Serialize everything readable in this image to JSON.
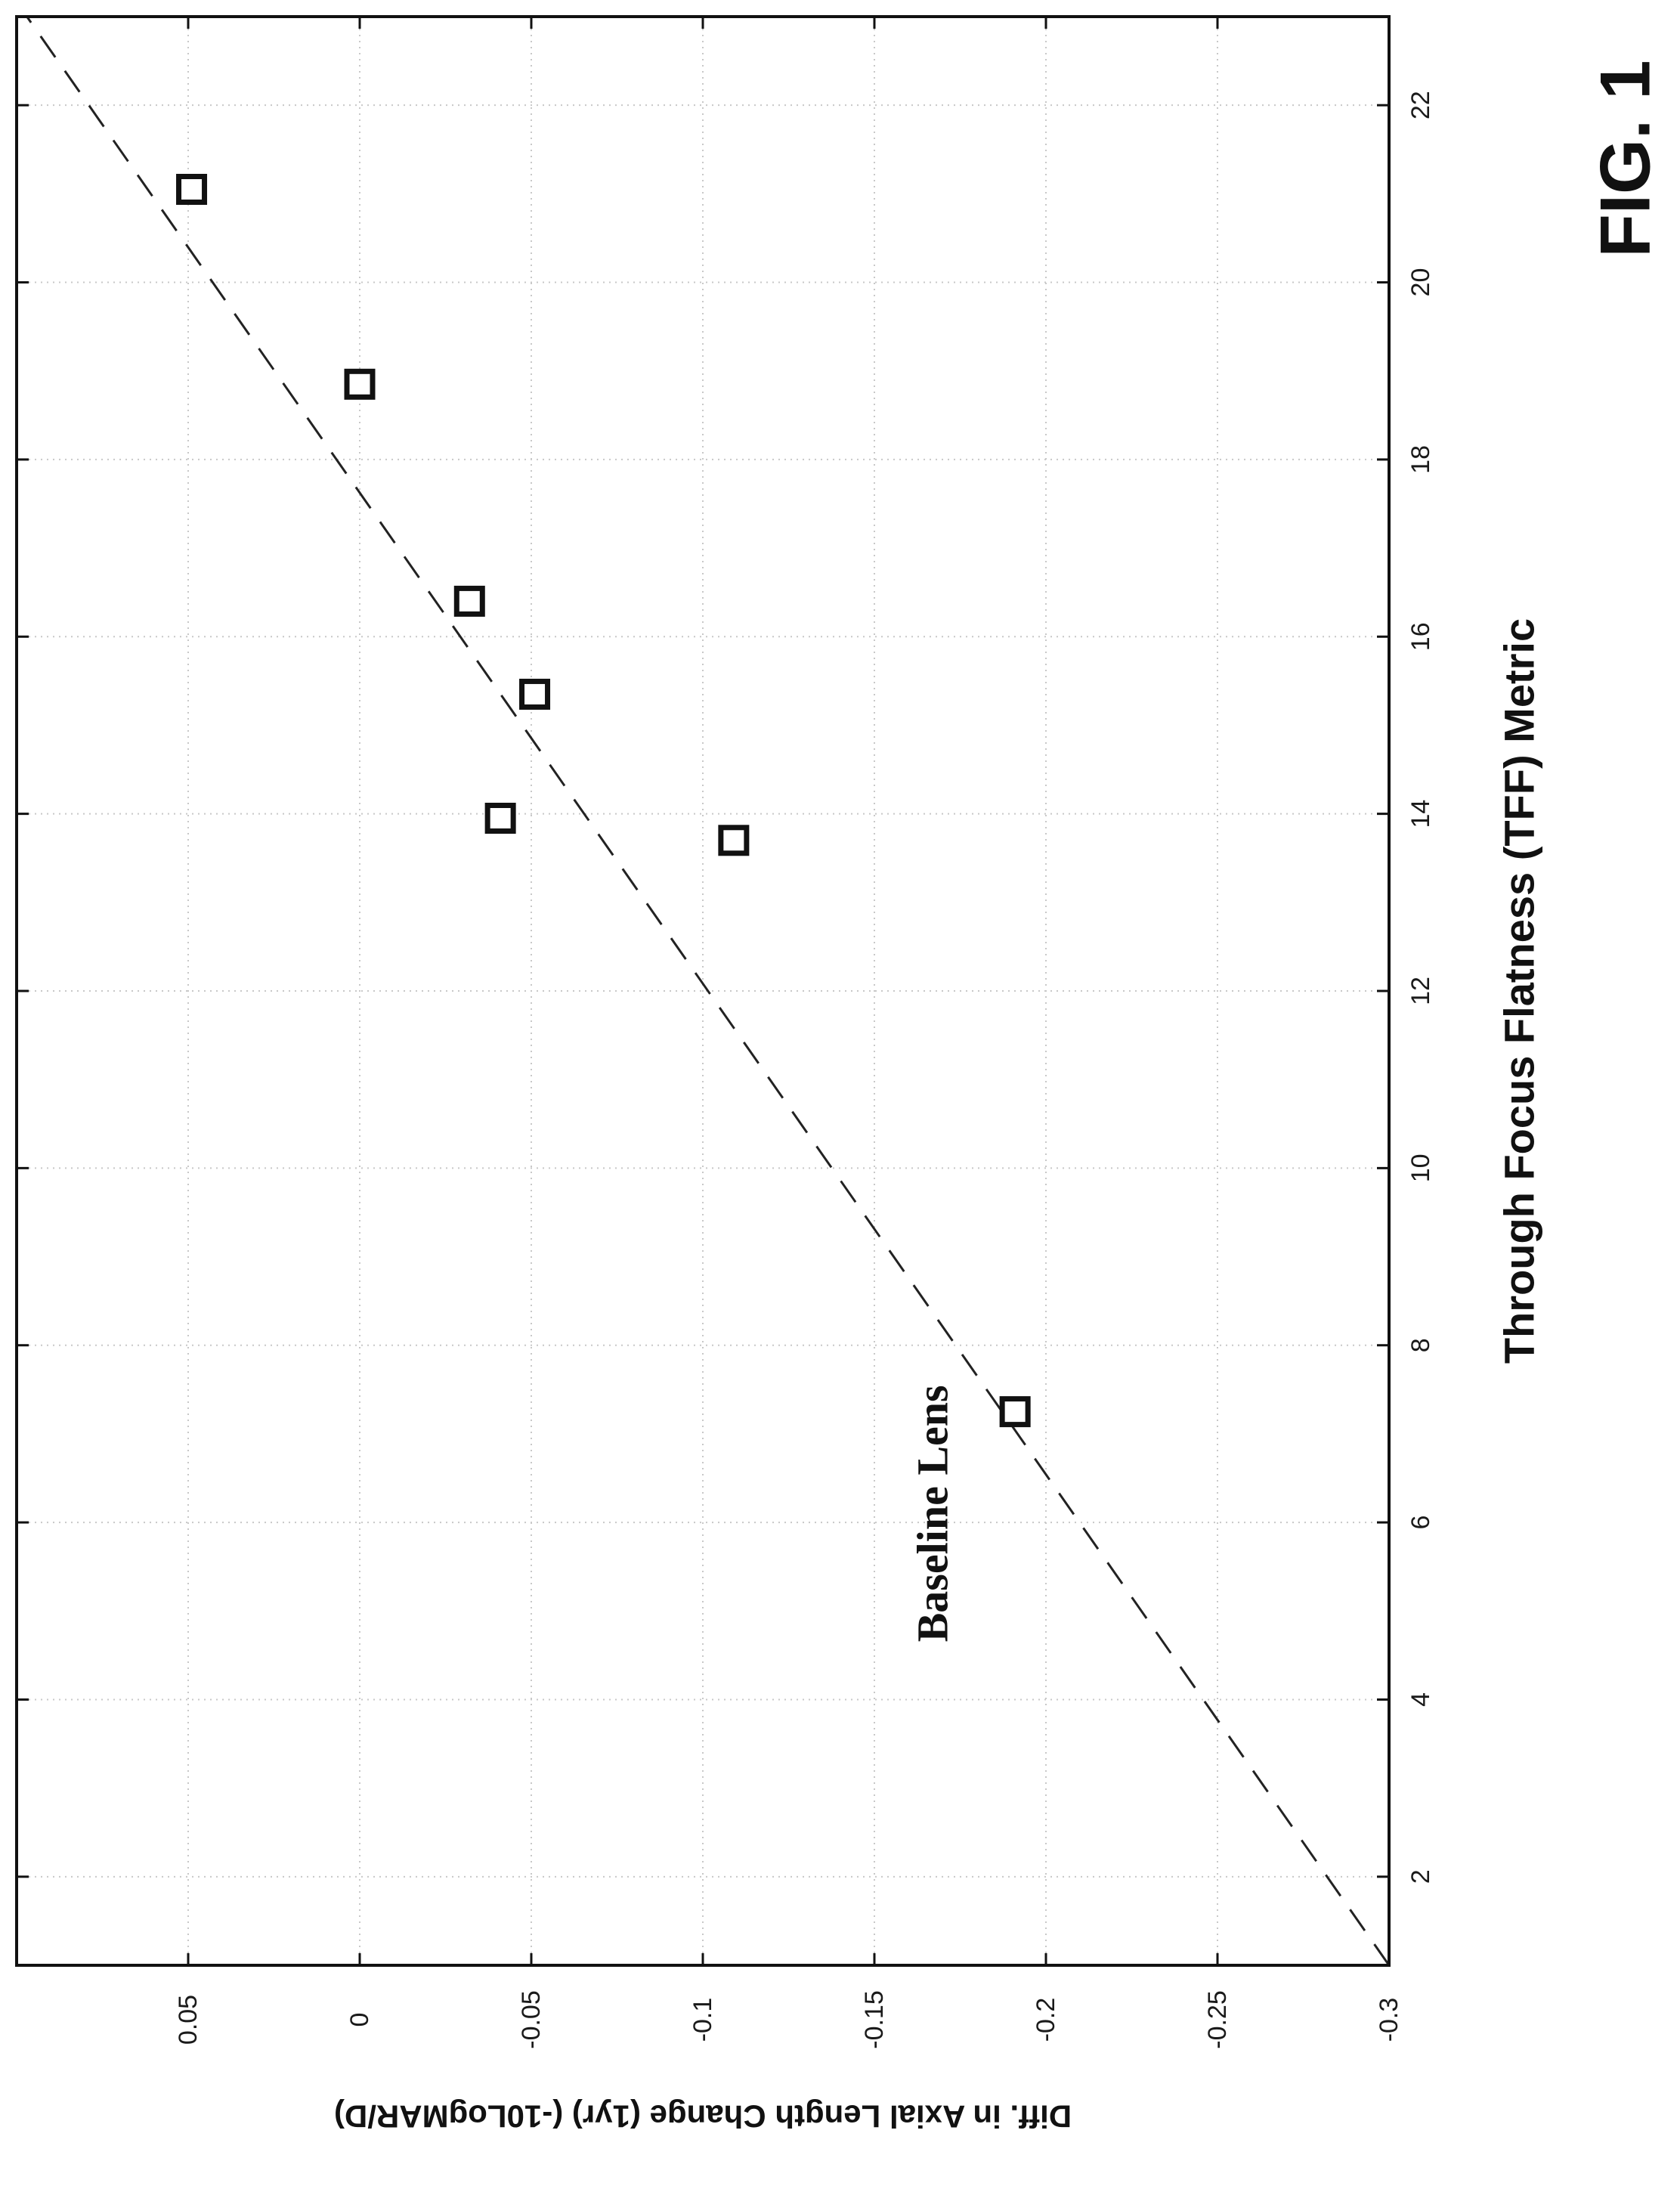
{
  "figure_label": "FIG. 1",
  "chart_data": {
    "type": "scatter",
    "title": "",
    "xlabel": "Through Focus Flatness (TFF) Metric",
    "ylabel": "Diff. in Axial Length Change (1yr) (-10LogMAR/D)",
    "xlim": [
      1,
      23
    ],
    "ylim": [
      -0.3,
      0.1
    ],
    "x_ticks": [
      2,
      4,
      6,
      8,
      10,
      12,
      14,
      16,
      18,
      20,
      22
    ],
    "x_tick_labels": [
      "2",
      "4",
      "6",
      "8",
      "10",
      "12",
      "14",
      "16",
      "18",
      "20",
      "22"
    ],
    "y_ticks": [
      0.05,
      0,
      -0.05,
      -0.1,
      -0.15,
      -0.2,
      -0.25,
      -0.3
    ],
    "y_tick_labels": [
      "0.05",
      "0",
      "-0.05",
      "-0.1",
      "-0.15",
      "-0.2",
      "-0.25",
      "-0.3"
    ],
    "grid": true,
    "orientation": "rotated 90° counter-clockwise",
    "series": [
      {
        "marker": "square",
        "x": [
          7.25,
          13.7,
          13.95,
          15.35,
          16.4,
          18.85,
          21.05
        ],
        "y": [
          -0.191,
          -0.109,
          -0.041,
          -0.051,
          -0.032,
          0.0,
          0.049
        ]
      }
    ],
    "fit_line": {
      "style": "dashed",
      "x": [
        1,
        23
      ],
      "y": [
        -0.3,
        0.097
      ]
    },
    "annotations": [
      {
        "text": "Baseline Lens",
        "x": 6.1,
        "y": -0.167
      }
    ]
  }
}
